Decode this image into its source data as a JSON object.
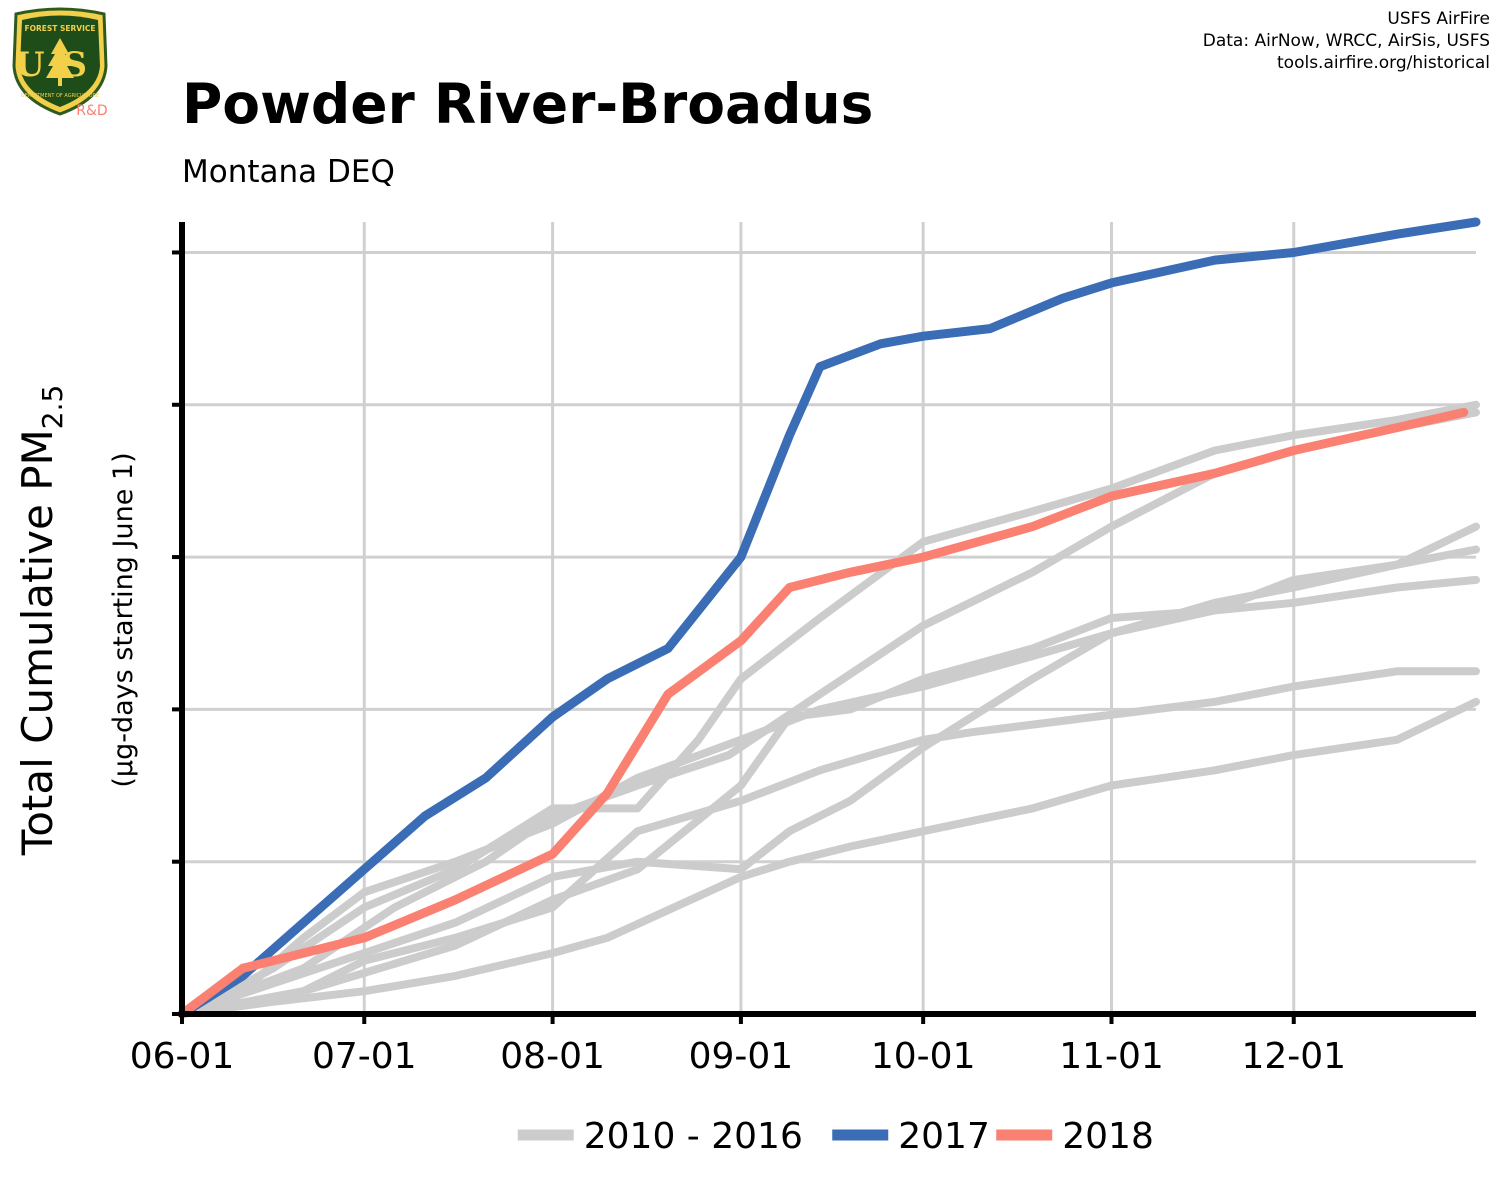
{
  "logo": {
    "top_text": "FOREST SERVICE",
    "letters": "US",
    "bottom_text": "DEPARTMENT OF AGRICULTURE",
    "rd_label": "R&D"
  },
  "credits": {
    "line1": "USFS AirFire",
    "line2": "Data: AirNow, WRCC, AirSis, USFS",
    "line3": "tools.airfire.org/historical"
  },
  "chart_data": {
    "type": "line",
    "title": "Powder River-Broadus",
    "subtitle": "Montana DEQ",
    "ylabel_main": "Total Cumulative PM",
    "ylabel_sub": "2.5",
    "ylabel_units": "(µg-days starting June 1)",
    "xlabel": "",
    "x_ticks": [
      "06-01",
      "07-01",
      "08-01",
      "09-01",
      "10-01",
      "11-01",
      "12-01"
    ],
    "x_tick_days": [
      0,
      30,
      61,
      92,
      122,
      153,
      183
    ],
    "xlim": [
      0,
      213
    ],
    "ylim": [
      0,
      5200
    ],
    "y_ticks": [
      0,
      1000,
      2000,
      3000,
      4000,
      5000
    ],
    "y_tick_labels_visible": false,
    "grid": true,
    "legend_position": "bottom",
    "colors": {
      "historical": "#cccccc",
      "y2017": "#3a6db5",
      "y2018": "#fa8072"
    },
    "legend": [
      {
        "label": "2010 - 2016",
        "color": "#cccccc"
      },
      {
        "label": "2017",
        "color": "#3a6db5"
      },
      {
        "label": "2018",
        "color": "#fa8072"
      }
    ],
    "series": [
      {
        "group": "historical",
        "points": [
          [
            0,
            0
          ],
          [
            15,
            80
          ],
          [
            30,
            150
          ],
          [
            45,
            250
          ],
          [
            61,
            400
          ],
          [
            70,
            500
          ],
          [
            92,
            900
          ],
          [
            100,
            1000
          ],
          [
            110,
            1100
          ],
          [
            122,
            1200
          ],
          [
            140,
            1350
          ],
          [
            153,
            1500
          ],
          [
            170,
            1600
          ],
          [
            183,
            1700
          ],
          [
            200,
            1800
          ],
          [
            213,
            2050
          ]
        ]
      },
      {
        "group": "historical",
        "points": [
          [
            0,
            0
          ],
          [
            20,
            150
          ],
          [
            30,
            350
          ],
          [
            45,
            500
          ],
          [
            61,
            700
          ],
          [
            75,
            1200
          ],
          [
            92,
            1400
          ],
          [
            105,
            1600
          ],
          [
            122,
            1800
          ],
          [
            130,
            1850
          ],
          [
            150,
            1950
          ],
          [
            170,
            2050
          ],
          [
            183,
            2150
          ],
          [
            200,
            2250
          ],
          [
            213,
            2250
          ]
        ]
      },
      {
        "group": "historical",
        "points": [
          [
            0,
            0
          ],
          [
            8,
            150
          ],
          [
            15,
            300
          ],
          [
            30,
            700
          ],
          [
            45,
            950
          ],
          [
            61,
            1350
          ],
          [
            75,
            1350
          ],
          [
            85,
            1800
          ],
          [
            92,
            2200
          ],
          [
            105,
            2600
          ],
          [
            122,
            3100
          ],
          [
            140,
            3300
          ],
          [
            153,
            3450
          ],
          [
            170,
            3700
          ],
          [
            183,
            3800
          ],
          [
            200,
            3900
          ],
          [
            213,
            4000
          ]
        ]
      },
      {
        "group": "historical",
        "points": [
          [
            0,
            0
          ],
          [
            10,
            150
          ],
          [
            20,
            500
          ],
          [
            30,
            800
          ],
          [
            45,
            1000
          ],
          [
            61,
            1250
          ],
          [
            75,
            1550
          ],
          [
            92,
            1800
          ],
          [
            105,
            2000
          ],
          [
            122,
            2150
          ],
          [
            140,
            2350
          ],
          [
            153,
            2500
          ],
          [
            170,
            2650
          ],
          [
            183,
            2700
          ],
          [
            200,
            2800
          ],
          [
            213,
            2850
          ]
        ]
      },
      {
        "group": "historical",
        "points": [
          [
            0,
            0
          ],
          [
            20,
            150
          ],
          [
            45,
            450
          ],
          [
            61,
            750
          ],
          [
            75,
            950
          ],
          [
            92,
            1500
          ],
          [
            100,
            1950
          ],
          [
            110,
            2000
          ],
          [
            122,
            2200
          ],
          [
            140,
            2400
          ],
          [
            153,
            2600
          ],
          [
            170,
            2650
          ],
          [
            183,
            2850
          ],
          [
            200,
            2950
          ],
          [
            213,
            3050
          ]
        ]
      },
      {
        "group": "historical",
        "points": [
          [
            0,
            0
          ],
          [
            15,
            200
          ],
          [
            30,
            400
          ],
          [
            45,
            600
          ],
          [
            61,
            900
          ],
          [
            75,
            1000
          ],
          [
            92,
            950
          ],
          [
            100,
            1200
          ],
          [
            110,
            1400
          ],
          [
            122,
            1750
          ],
          [
            140,
            2200
          ],
          [
            153,
            2500
          ],
          [
            170,
            2700
          ],
          [
            183,
            2800
          ],
          [
            200,
            2950
          ],
          [
            213,
            3200
          ]
        ]
      },
      {
        "group": "historical",
        "points": [
          [
            0,
            0
          ],
          [
            20,
            300
          ],
          [
            35,
            700
          ],
          [
            50,
            1000
          ],
          [
            61,
            1300
          ],
          [
            75,
            1500
          ],
          [
            90,
            1700
          ],
          [
            105,
            2100
          ],
          [
            122,
            2550
          ],
          [
            140,
            2900
          ],
          [
            153,
            3200
          ],
          [
            170,
            3550
          ],
          [
            183,
            3700
          ],
          [
            200,
            3850
          ],
          [
            213,
            3950
          ]
        ]
      },
      {
        "group": "2017",
        "label": "2017",
        "points": [
          [
            0,
            0
          ],
          [
            10,
            250
          ],
          [
            20,
            600
          ],
          [
            30,
            950
          ],
          [
            40,
            1300
          ],
          [
            50,
            1550
          ],
          [
            61,
            1950
          ],
          [
            70,
            2200
          ],
          [
            80,
            2400
          ],
          [
            92,
            3000
          ],
          [
            100,
            3800
          ],
          [
            105,
            4250
          ],
          [
            115,
            4400
          ],
          [
            122,
            4450
          ],
          [
            133,
            4500
          ],
          [
            145,
            4700
          ],
          [
            153,
            4800
          ],
          [
            170,
            4950
          ],
          [
            183,
            5000
          ],
          [
            200,
            5120
          ],
          [
            213,
            5200
          ]
        ]
      },
      {
        "group": "2018",
        "label": "2018",
        "points": [
          [
            0,
            0
          ],
          [
            10,
            300
          ],
          [
            20,
            400
          ],
          [
            30,
            500
          ],
          [
            45,
            750
          ],
          [
            61,
            1050
          ],
          [
            70,
            1450
          ],
          [
            80,
            2100
          ],
          [
            92,
            2450
          ],
          [
            100,
            2800
          ],
          [
            110,
            2900
          ],
          [
            122,
            3000
          ],
          [
            140,
            3200
          ],
          [
            153,
            3400
          ],
          [
            170,
            3550
          ],
          [
            183,
            3700
          ],
          [
            200,
            3850
          ],
          [
            211,
            3950
          ]
        ]
      }
    ]
  }
}
